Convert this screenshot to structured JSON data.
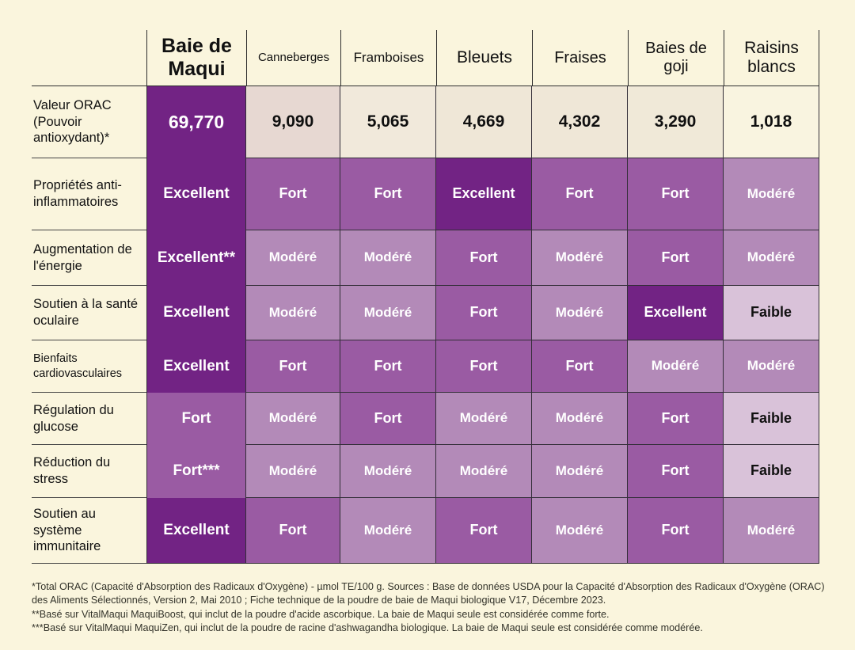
{
  "colors": {
    "page_bg": "#faf5dd",
    "excellent": "#722384",
    "fort": "#9a5ba3",
    "moderate": "#b38ab8",
    "faible": "#d9c2d9",
    "orac_scale": [
      "#722384",
      "#e7d8d2",
      "#f1e9db",
      "#efe7d7",
      "#efe7d7",
      "#f0e9d8",
      "#f9f4e0"
    ]
  },
  "chart_data": {
    "type": "table",
    "columns": [
      "Baie de Maqui",
      "Canneberges",
      "Framboises",
      "Bleuets",
      "Fraises",
      "Baies de goji",
      "Raisins blancs"
    ],
    "rows": [
      {
        "label": "Valeur ORAC (Pouvoir antioxydant)*",
        "values": [
          "69,770",
          "9,090",
          "5,065",
          "4,669",
          "4,302",
          "3,290",
          "1,018"
        ]
      },
      {
        "label": "Propriétés anti-inflammatoires",
        "values": [
          "Excellent",
          "Fort",
          "Fort",
          "Excellent",
          "Fort",
          "Fort",
          "Modéré"
        ]
      },
      {
        "label": "Augmentation de l'énergie",
        "values": [
          "Excellent**",
          "Modéré",
          "Modéré",
          "Fort",
          "Modéré",
          "Fort",
          "Modéré"
        ]
      },
      {
        "label": "Soutien à la santé oculaire",
        "values": [
          "Excellent",
          "Modéré",
          "Modéré",
          "Fort",
          "Modéré",
          "Excellent",
          "Faible"
        ]
      },
      {
        "label": "Bienfaits cardiovasculaires",
        "values": [
          "Excellent",
          "Fort",
          "Fort",
          "Fort",
          "Fort",
          "Modéré",
          "Modéré"
        ]
      },
      {
        "label": "Régulation du glucose",
        "values": [
          "Fort",
          "Modéré",
          "Fort",
          "Modéré",
          "Modéré",
          "Fort",
          "Faible"
        ]
      },
      {
        "label": "Réduction du stress",
        "values": [
          "Fort***",
          "Modéré",
          "Modéré",
          "Modéré",
          "Modéré",
          "Fort",
          "Faible"
        ]
      },
      {
        "label": "Soutien au système immunitaire",
        "values": [
          "Excellent",
          "Fort",
          "Modéré",
          "Fort",
          "Modéré",
          "Fort",
          "Modéré"
        ]
      }
    ],
    "rating_levels": [
      "Excellent",
      "Fort",
      "Modéré",
      "Faible"
    ]
  },
  "footnotes": [
    "*Total ORAC (Capacité d'Absorption des Radicaux d'Oxygène) - µmol TE/100 g. Sources : Base de données USDA pour la Capacité d'Absorption des Radicaux d'Oxygène (ORAC) des Aliments Sélectionnés, Version 2, Mai 2010 ; Fiche technique de la poudre de baie de Maqui biologique V17, Décembre 2023.",
    "**Basé sur VitalMaqui MaquiBoost, qui inclut de la poudre d'acide ascorbique. La baie de Maqui seule est considérée comme forte.",
    "***Basé sur VitalMaqui MaquiZen, qui inclut de la poudre de racine d'ashwagandha biologique. La baie de Maqui seule est considérée comme modérée."
  ]
}
